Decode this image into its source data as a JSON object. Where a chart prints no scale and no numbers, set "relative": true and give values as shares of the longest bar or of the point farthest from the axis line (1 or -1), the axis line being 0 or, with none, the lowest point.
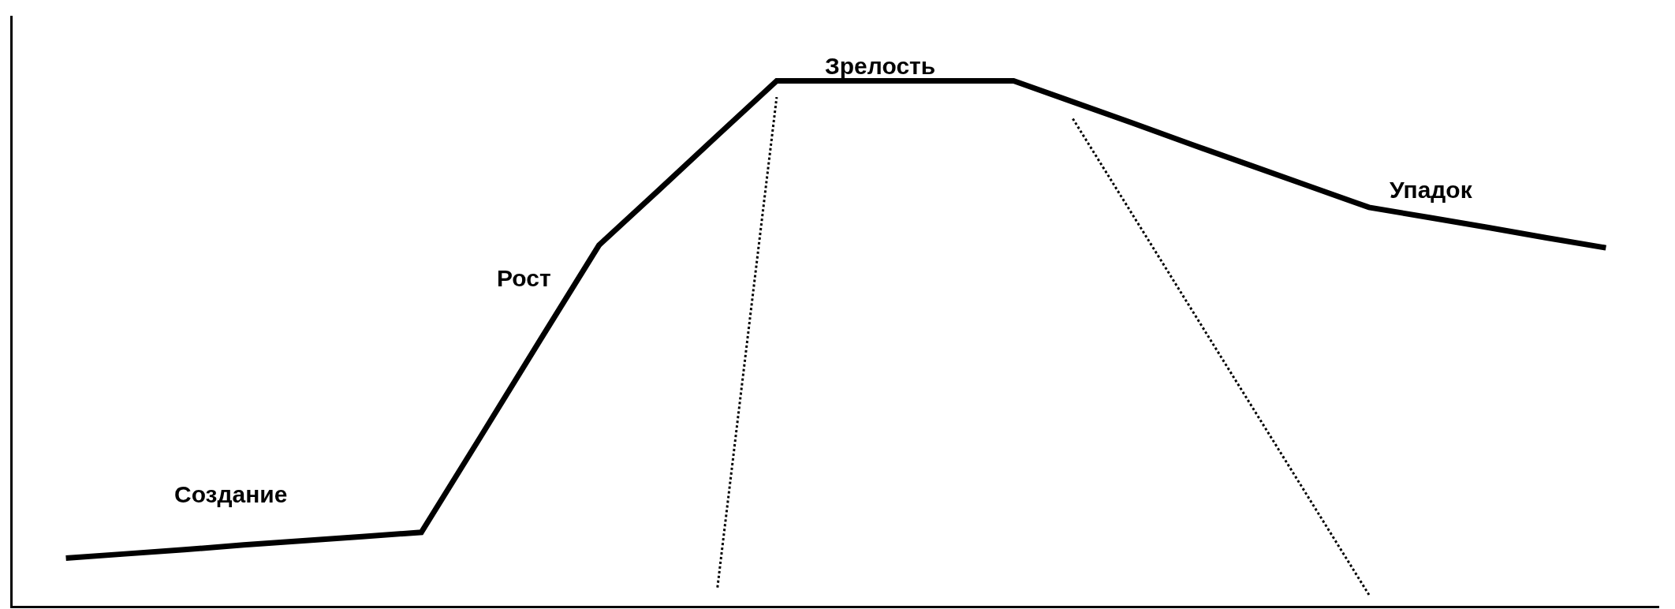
{
  "chart_data": {
    "type": "line",
    "relative": true,
    "grid": false,
    "categories": [
      null,
      null,
      null,
      null,
      null,
      null,
      null,
      null,
      null,
      null,
      null,
      null,
      null,
      null,
      null,
      null,
      null,
      null,
      null,
      null,
      null,
      null,
      null,
      null,
      null,
      null,
      null
    ],
    "series": [
      {
        "color": "#000000",
        "line_style": "solid",
        "values": [
          0.091,
          0.099,
          0.107,
          0.116,
          0.124,
          0.132,
          0.14,
          0.322,
          0.505,
          0.687,
          0.791,
          0.896,
          1,
          1,
          1,
          1,
          1,
          0.96,
          0.92,
          0.879,
          0.839,
          0.799,
          0.759,
          0.74,
          0.721,
          0.701,
          0.682
        ]
      },
      {
        "color": "#000000",
        "line_style": "dotted",
        "values": [
          null,
          null,
          null,
          null,
          null,
          null,
          null,
          null,
          null,
          null,
          null,
          0.035,
          0.969,
          null,
          null,
          null,
          null,
          null,
          null,
          null,
          null,
          null,
          null,
          null,
          null,
          null,
          null
        ]
      },
      {
        "color": "#000000",
        "line_style": "dotted",
        "values": [
          null,
          null,
          null,
          null,
          null,
          null,
          null,
          null,
          null,
          null,
          null,
          null,
          null,
          null,
          null,
          null,
          null,
          0.928,
          null,
          null,
          null,
          null,
          0.021,
          null,
          null,
          null,
          null
        ]
      }
    ],
    "annotations": [
      "Создание",
      "Рост",
      "Зрелость",
      "Упадок"
    ]
  }
}
